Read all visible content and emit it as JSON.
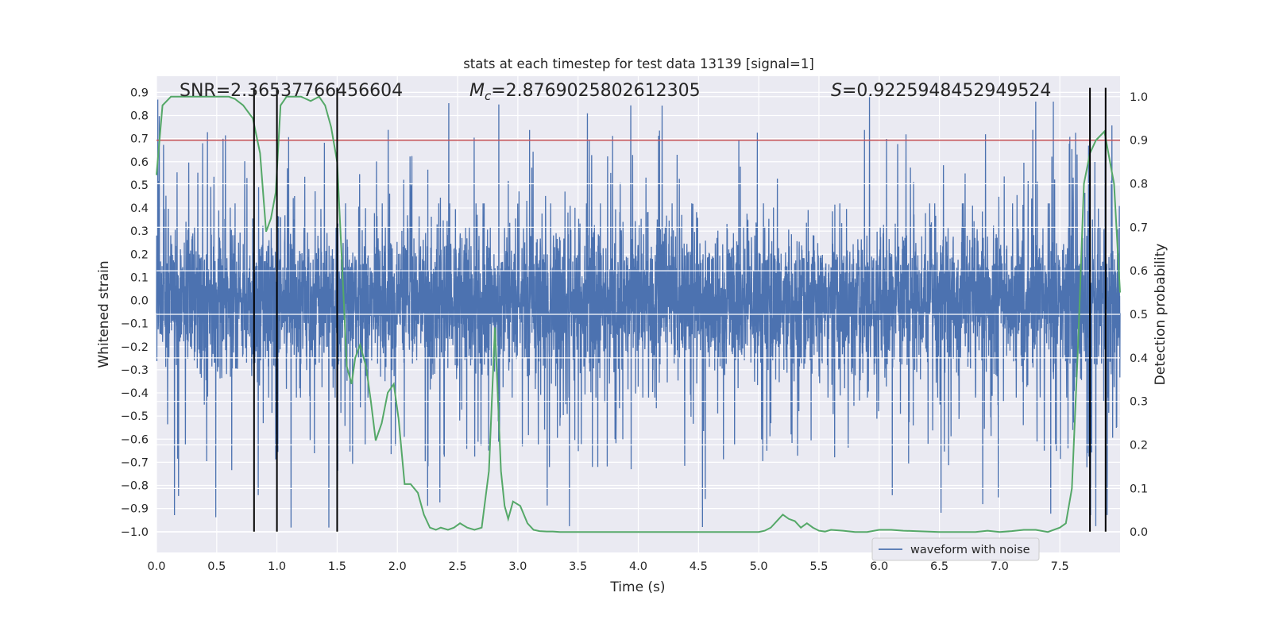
{
  "chart_data": {
    "type": "line",
    "title": "stats at each timestep for test data 13139 [signal=1]",
    "xlabel": "Time (s)",
    "ylabel_left": "Whitened strain",
    "ylabel_right": "Detection probability",
    "xlim": [
      0,
      8
    ],
    "ylim_left": [
      -1.09,
      0.97
    ],
    "ylim_right": [
      -0.047,
      1.047
    ],
    "x_ticks": [
      "0.0",
      "0.5",
      "1.0",
      "1.5",
      "2.0",
      "2.5",
      "3.0",
      "3.5",
      "4.0",
      "4.5",
      "5.0",
      "5.5",
      "6.0",
      "6.5",
      "7.0",
      "7.5"
    ],
    "y_ticks_left": [
      "0.9",
      "0.8",
      "0.7",
      "0.6",
      "0.5",
      "0.4",
      "0.3",
      "0.2",
      "0.1",
      "0.0",
      "-0.1",
      "-0.2",
      "-0.3",
      "-0.4",
      "-0.5",
      "-0.6",
      "-0.7",
      "-0.8",
      "-0.9",
      "-1.0"
    ],
    "y_ticks_right": [
      "1.0",
      "0.9",
      "0.8",
      "0.7",
      "0.6",
      "0.5",
      "0.4",
      "0.3",
      "0.2",
      "0.1",
      "0.0"
    ],
    "grid": true,
    "legend": {
      "placement": "lower center",
      "entries": [
        "waveform with noise"
      ]
    },
    "annotations": {
      "snr": "SNR=2.36537766456604",
      "mc_symbol": "M",
      "mc_sub": "c",
      "mc_value": "=2.8769025802612305",
      "s_symbol": "S",
      "s_value": "=0.9225948452949524"
    },
    "threshold": {
      "value": 0.9,
      "axis": "right",
      "color": "#c44e52"
    },
    "vertical_lines_x": [
      0.81,
      1.0,
      1.5,
      7.75,
      7.88
    ],
    "vertical_lines_ymax": 0.92,
    "colors": {
      "waveform": "#4c72b0",
      "probability": "#55a868",
      "threshold": "#c44e52",
      "vlines": "#000000",
      "background": "#eaeaf2"
    },
    "series": [
      {
        "name": "waveform with noise",
        "axis": "left",
        "description_values": "noise band approximately -0.45 to 0.45 with spikes reaching about 0.9 and -1.0",
        "envelope": {
          "typical_abs": 0.42,
          "max": 0.89,
          "min": -0.99
        }
      },
      {
        "axis": "right",
        "x": [
          0.0,
          0.05,
          0.12,
          0.2,
          0.3,
          0.4,
          0.5,
          0.6,
          0.65,
          0.72,
          0.8,
          0.86,
          0.91,
          0.95,
          0.99,
          1.03,
          1.08,
          1.13,
          1.2,
          1.28,
          1.35,
          1.4,
          1.45,
          1.5,
          1.55,
          1.58,
          1.62,
          1.65,
          1.69,
          1.74,
          1.78,
          1.82,
          1.87,
          1.92,
          1.97,
          2.01,
          2.06,
          2.11,
          2.17,
          2.22,
          2.27,
          2.32,
          2.36,
          2.42,
          2.47,
          2.52,
          2.58,
          2.64,
          2.7,
          2.76,
          2.81,
          2.86,
          2.89,
          2.92,
          2.96,
          3.02,
          3.08,
          3.13,
          3.18,
          3.24,
          3.29,
          3.35,
          3.4,
          3.5,
          3.6,
          3.7,
          3.8,
          4.0,
          4.2,
          4.4,
          4.6,
          4.8,
          5.0,
          5.05,
          5.1,
          5.15,
          5.2,
          5.25,
          5.3,
          5.35,
          5.4,
          5.45,
          5.5,
          5.55,
          5.6,
          5.7,
          5.8,
          5.9,
          6.0,
          6.1,
          6.2,
          6.3,
          6.5,
          6.7,
          6.8,
          6.9,
          7.0,
          7.1,
          7.2,
          7.3,
          7.4,
          7.5,
          7.55,
          7.6,
          7.65,
          7.7,
          7.75,
          7.8,
          7.87,
          7.95,
          8.0
        ],
        "y": [
          0.82,
          0.98,
          1.0,
          1.0,
          1.0,
          1.0,
          1.0,
          1.0,
          0.995,
          0.98,
          0.95,
          0.87,
          0.69,
          0.72,
          0.78,
          0.98,
          1.0,
          1.0,
          1.0,
          0.99,
          1.0,
          0.98,
          0.93,
          0.85,
          0.56,
          0.38,
          0.34,
          0.4,
          0.43,
          0.38,
          0.3,
          0.21,
          0.25,
          0.32,
          0.34,
          0.26,
          0.11,
          0.11,
          0.09,
          0.04,
          0.01,
          0.005,
          0.01,
          0.005,
          0.01,
          0.02,
          0.01,
          0.005,
          0.01,
          0.14,
          0.47,
          0.14,
          0.06,
          0.03,
          0.07,
          0.06,
          0.02,
          0.005,
          0.002,
          0.001,
          0.001,
          0.0,
          0.0,
          0.0,
          0.0,
          0.0,
          0.0,
          0.0,
          0.0,
          0.0,
          0.0,
          0.0,
          0.0,
          0.003,
          0.01,
          0.025,
          0.04,
          0.03,
          0.025,
          0.01,
          0.02,
          0.01,
          0.003,
          0.001,
          0.005,
          0.003,
          0.0,
          0.0,
          0.005,
          0.005,
          0.003,
          0.002,
          0.0,
          0.0,
          0.0,
          0.003,
          0.0,
          0.002,
          0.005,
          0.005,
          0.0,
          0.01,
          0.02,
          0.1,
          0.42,
          0.8,
          0.87,
          0.9,
          0.92,
          0.8,
          0.55
        ]
      }
    ]
  }
}
